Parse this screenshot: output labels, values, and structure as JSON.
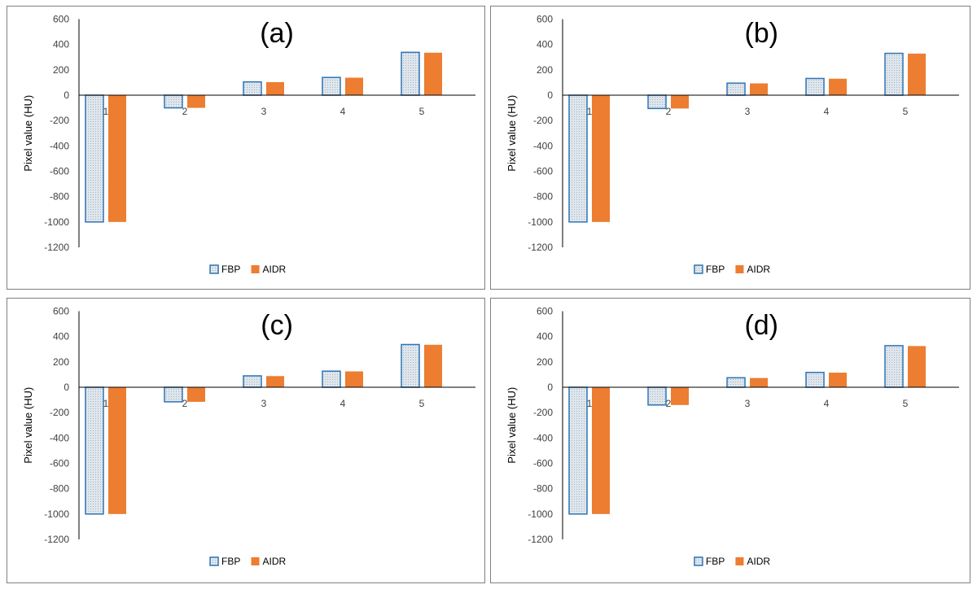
{
  "chart_data": [
    {
      "type": "bar",
      "title": "(a)",
      "xlabel": "",
      "ylabel": "Pixel value (HU)",
      "ylim": [
        -1200,
        600
      ],
      "yticks": [
        600,
        400,
        200,
        0,
        -200,
        -400,
        -600,
        -800,
        -1000,
        -1200
      ],
      "categories": [
        "1",
        "2",
        "3",
        "4",
        "5"
      ],
      "series": [
        {
          "name": "FBP",
          "values": [
            -1000,
            -100,
            105,
            140,
            338
          ]
        },
        {
          "name": "AIDR",
          "values": [
            -1000,
            -100,
            103,
            138,
            335
          ]
        }
      ],
      "legend": "bottom",
      "grid": false
    },
    {
      "type": "bar",
      "title": "(b)",
      "xlabel": "",
      "ylabel": "Pixel value (HU)",
      "ylim": [
        -1200,
        600
      ],
      "yticks": [
        600,
        400,
        200,
        0,
        -200,
        -400,
        -600,
        -800,
        -1000,
        -1200
      ],
      "categories": [
        "1",
        "2",
        "3",
        "4",
        "5"
      ],
      "series": [
        {
          "name": "FBP",
          "values": [
            -1000,
            -105,
            95,
            132,
            330
          ]
        },
        {
          "name": "AIDR",
          "values": [
            -1000,
            -105,
            93,
            130,
            328
          ]
        }
      ],
      "legend": "bottom",
      "grid": false
    },
    {
      "type": "bar",
      "title": "(c)",
      "xlabel": "",
      "ylabel": "Pixel value (HU)",
      "ylim": [
        -1200,
        600
      ],
      "yticks": [
        600,
        400,
        200,
        0,
        -200,
        -400,
        -600,
        -800,
        -1000,
        -1200
      ],
      "categories": [
        "1",
        "2",
        "3",
        "4",
        "5"
      ],
      "series": [
        {
          "name": "FBP",
          "values": [
            -1000,
            -115,
            90,
            127,
            337
          ]
        },
        {
          "name": "AIDR",
          "values": [
            -1000,
            -115,
            88,
            125,
            335
          ]
        }
      ],
      "legend": "bottom",
      "grid": false
    },
    {
      "type": "bar",
      "title": "(d)",
      "xlabel": "",
      "ylabel": "Pixel value (HU)",
      "ylim": [
        -1200,
        600
      ],
      "yticks": [
        600,
        400,
        200,
        0,
        -200,
        -400,
        -600,
        -800,
        -1000,
        -1200
      ],
      "categories": [
        "1",
        "2",
        "3",
        "4",
        "5"
      ],
      "series": [
        {
          "name": "FBP",
          "values": [
            -1000,
            -140,
            75,
            117,
            328
          ]
        },
        {
          "name": "AIDR",
          "values": [
            -1000,
            -140,
            73,
            115,
            325
          ]
        }
      ],
      "legend": "bottom",
      "grid": false
    }
  ],
  "colors": {
    "fbp_fill": "#dfe6ec",
    "fbp_stroke": "#2e75b6",
    "aidr_fill": "#ed7d31",
    "axis": "#000000",
    "tick_label": "#404040",
    "panel_border": "#7f7f7f"
  }
}
